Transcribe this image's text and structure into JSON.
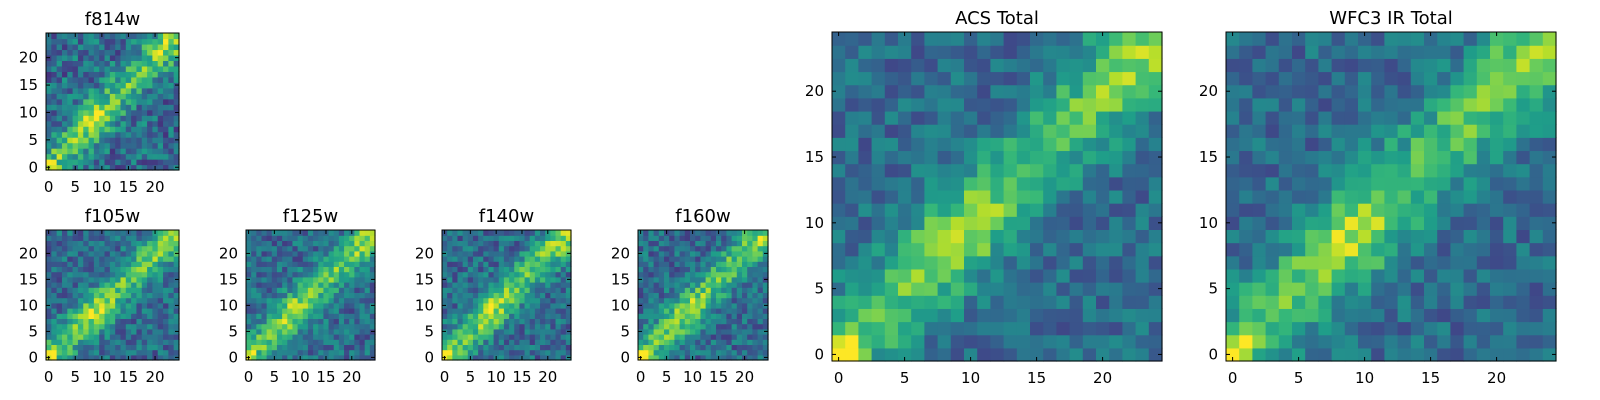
{
  "chart_data": [
    {
      "type": "heatmap",
      "title": "f814w",
      "xlim": [
        -0.5,
        24.5
      ],
      "ylim": [
        -0.5,
        24.5
      ],
      "xticks": [
        0,
        5,
        10,
        15,
        20
      ],
      "yticks": [
        0,
        5,
        10,
        15,
        20
      ],
      "colormap": "viridis",
      "note": "diagonal band of bright pixels from (0,0) to (24,24)"
    },
    {
      "type": "heatmap",
      "title": "f105w",
      "xlim": [
        -0.5,
        24.5
      ],
      "ylim": [
        -0.5,
        24.5
      ],
      "xticks": [
        0,
        5,
        10,
        15,
        20
      ],
      "yticks": [
        0,
        5,
        10,
        15,
        20
      ],
      "colormap": "viridis"
    },
    {
      "type": "heatmap",
      "title": "f125w",
      "xlim": [
        -0.5,
        24.5
      ],
      "ylim": [
        -0.5,
        24.5
      ],
      "xticks": [
        0,
        5,
        10,
        15,
        20
      ],
      "yticks": [
        0,
        5,
        10,
        15,
        20
      ],
      "colormap": "viridis"
    },
    {
      "type": "heatmap",
      "title": "f140w",
      "xlim": [
        -0.5,
        24.5
      ],
      "ylim": [
        -0.5,
        24.5
      ],
      "xticks": [
        0,
        5,
        10,
        15,
        20
      ],
      "yticks": [
        0,
        5,
        10,
        15,
        20
      ],
      "colormap": "viridis"
    },
    {
      "type": "heatmap",
      "title": "f160w",
      "xlim": [
        -0.5,
        24.5
      ],
      "ylim": [
        -0.5,
        24.5
      ],
      "xticks": [
        0,
        5,
        10,
        15,
        20
      ],
      "yticks": [
        0,
        5,
        10,
        15,
        20
      ],
      "colormap": "viridis"
    },
    {
      "type": "heatmap",
      "title": "ACS Total",
      "xlim": [
        -0.5,
        24.5
      ],
      "ylim": [
        -0.5,
        24.5
      ],
      "xticks": [
        0,
        5,
        10,
        15,
        20
      ],
      "yticks": [
        0,
        5,
        10,
        15,
        20
      ],
      "colormap": "viridis"
    },
    {
      "type": "heatmap",
      "title": "WFC3 IR Total",
      "xlim": [
        -0.5,
        24.5
      ],
      "ylim": [
        -0.5,
        24.5
      ],
      "xticks": [
        0,
        5,
        10,
        15,
        20
      ],
      "yticks": [
        0,
        5,
        10,
        15,
        20
      ],
      "colormap": "viridis"
    }
  ]
}
